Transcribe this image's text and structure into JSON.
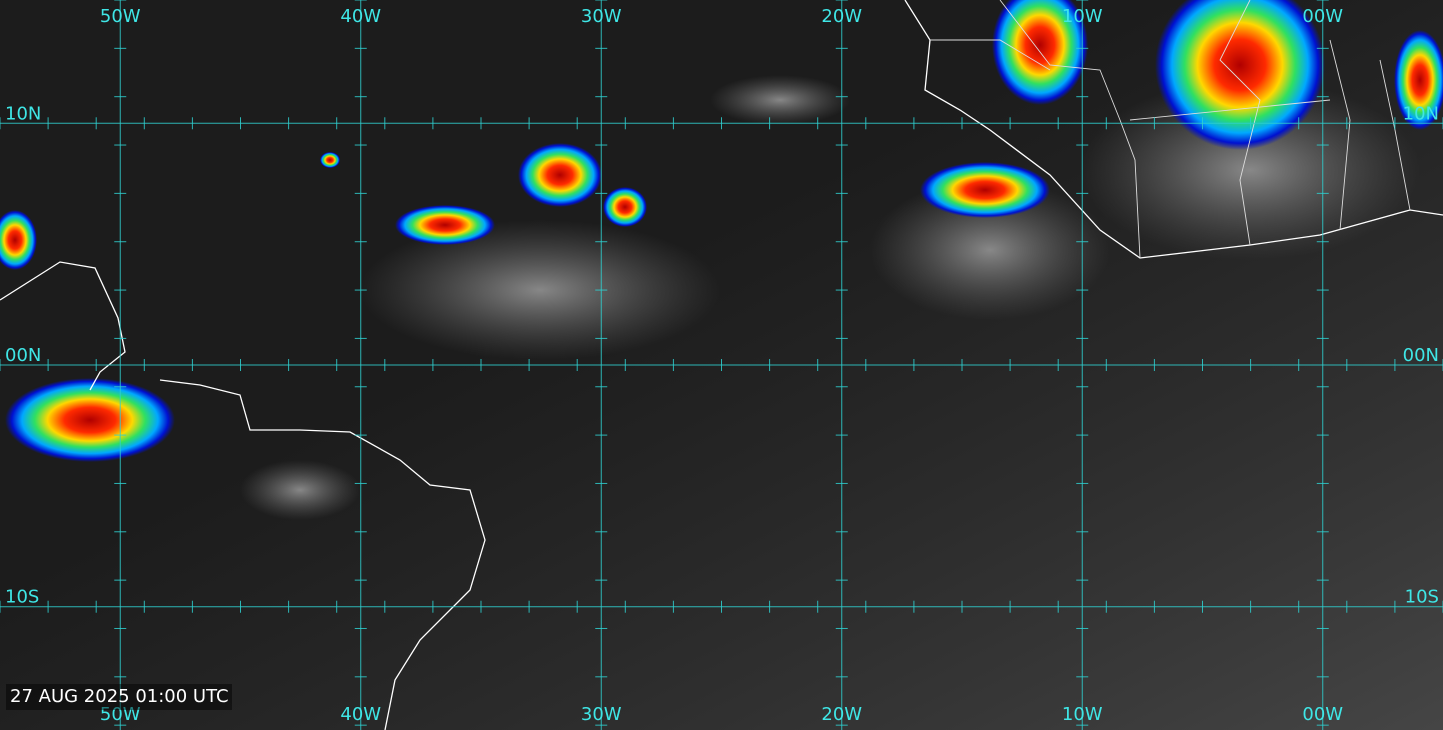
{
  "map": {
    "xlim": [
      -55,
      5
    ],
    "ylim": [
      -15.1,
      15.1
    ],
    "xticks": [
      {
        "value": -50,
        "label": "50W"
      },
      {
        "value": -40,
        "label": "40W"
      },
      {
        "value": -30,
        "label": "30W"
      },
      {
        "value": -20,
        "label": "20W"
      },
      {
        "value": -10,
        "label": "10W"
      },
      {
        "value": 0,
        "label": "00W"
      }
    ],
    "yticks": [
      {
        "value": 10,
        "label": "10N"
      },
      {
        "value": 0,
        "label": "00N"
      },
      {
        "value": -10,
        "label": "10S"
      }
    ],
    "timestamp": "27 AUG 2025 01:00 UTC"
  }
}
